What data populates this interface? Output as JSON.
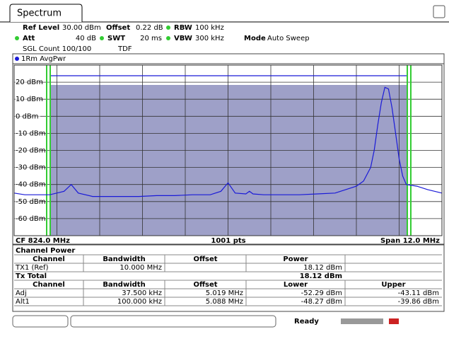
{
  "tab": "Spectrum",
  "settings": {
    "ref_level_label": "Ref Level",
    "ref_level": "30.00 dBm",
    "offset_label": "Offset",
    "offset": "0.22 dB",
    "rbw_label": "RBW",
    "rbw": "100 kHz",
    "att_label": "Att",
    "att": "40 dB",
    "swt_label": "SWT",
    "swt": "20 ms",
    "vbw_label": "VBW",
    "vbw": "300 kHz",
    "mode_label": "Mode",
    "mode": "Auto Sweep",
    "count": "SGL Count 100/100",
    "tdf": "TDF"
  },
  "chart_data": {
    "type": "line",
    "ylim": [
      -70,
      30
    ],
    "xlim": [
      818,
      830
    ],
    "yticks": [
      {
        "value": 20,
        "label": "20 dBm"
      },
      {
        "value": 10,
        "label": "10 dBm"
      },
      {
        "value": 0,
        "label": "0 dBm"
      },
      {
        "value": -10,
        "label": "-10 dBm"
      },
      {
        "value": -20,
        "label": "-20 dBm"
      },
      {
        "value": -30,
        "label": "-30 dBm"
      },
      {
        "value": -40,
        "label": "-40 dBm"
      },
      {
        "value": -50,
        "label": "-50 dBm"
      },
      {
        "value": -60,
        "label": "-60 dBm"
      }
    ],
    "grid": true,
    "series": [
      {
        "name": "1Rm AvgPwr",
        "color": "#1a1ad8",
        "x": [
          818.0,
          818.3,
          818.6,
          819.0,
          819.4,
          819.6,
          819.8,
          820.2,
          820.6,
          821.0,
          821.5,
          822.0,
          822.5,
          823.0,
          823.5,
          823.8,
          824.0,
          824.2,
          824.5,
          824.6,
          824.7,
          825.0,
          825.5,
          826.0,
          826.5,
          827.0,
          827.3,
          827.6,
          827.8,
          828.0,
          828.1,
          828.2,
          828.3,
          828.4,
          828.5,
          828.6,
          828.7,
          828.8,
          828.9,
          829.0,
          829.3,
          829.6,
          830.0
        ],
        "values": [
          -45,
          -46,
          -46,
          -46,
          -44,
          -40,
          -45,
          -47,
          -47,
          -47,
          -47,
          -46.5,
          -46.5,
          -46,
          -46,
          -44,
          -39,
          -45,
          -45.5,
          -44,
          -45.5,
          -46,
          -46,
          -46,
          -45.5,
          -45,
          -43,
          -41,
          -38,
          -30,
          -20,
          -5,
          8,
          17,
          16,
          5,
          -10,
          -25,
          -35,
          -40,
          -41,
          -43,
          -45
        ]
      }
    ],
    "center": "CF 824.0 MHz",
    "points": "1001 pts",
    "span": "Span 12.0 MHz"
  },
  "table": {
    "title": "Channel Power",
    "header1": [
      "Channel",
      "Bandwidth",
      "Offset",
      "Power"
    ],
    "tx1": {
      "channel": "TX1 (Ref)",
      "bandwidth": "10.000 MHz",
      "power": "18.12 dBm"
    },
    "total": {
      "label": "Tx Total",
      "power": "18.12 dBm"
    },
    "header2": [
      "Channel",
      "Bandwidth",
      "Offset",
      "Lower",
      "Upper"
    ],
    "rows": [
      [
        "Adj",
        "37.500 kHz",
        "5.019 MHz",
        "-52.29 dBm",
        "-43.11 dBm"
      ],
      [
        "Alt1",
        "100.000 kHz",
        "5.088 MHz",
        "-48.27 dBm",
        "-39.86 dBm"
      ]
    ]
  },
  "status": "Ready"
}
